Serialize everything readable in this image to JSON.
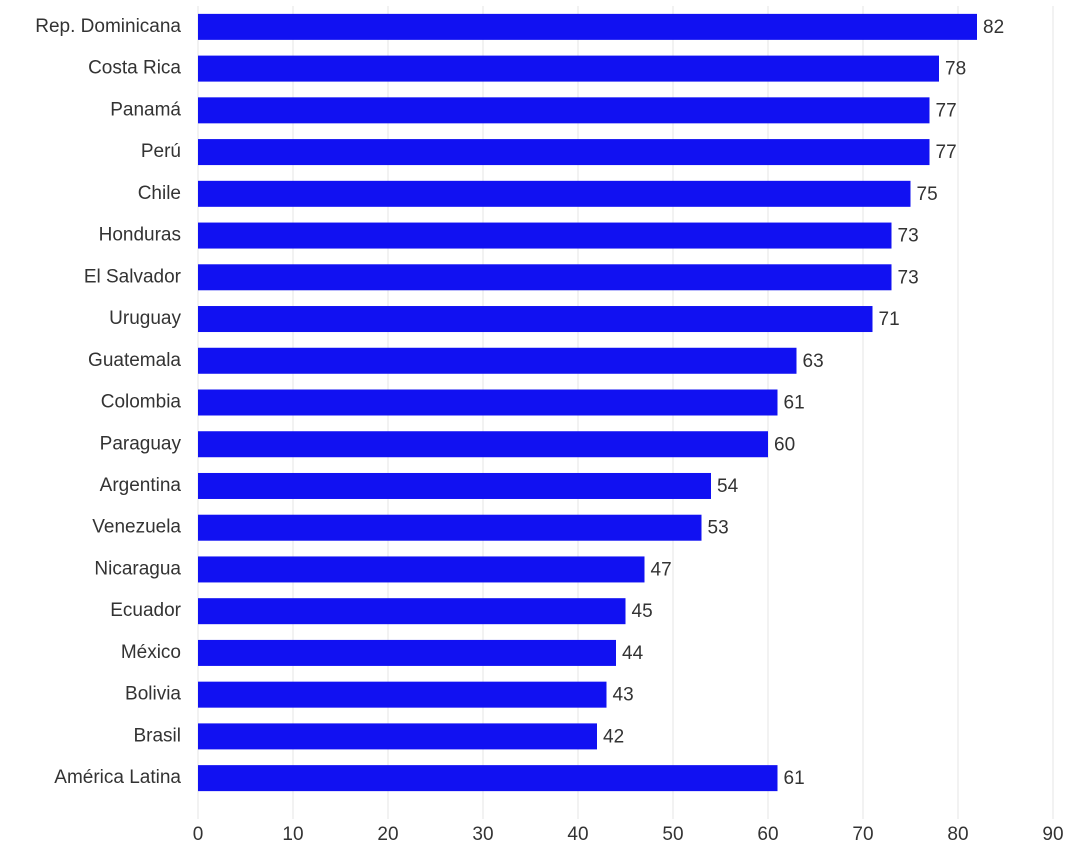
{
  "chart_data": {
    "type": "bar",
    "categories": [
      "Rep. Dominicana",
      "Costa Rica",
      "Panamá",
      "Perú",
      "Chile",
      "Honduras",
      "El Salvador",
      "Uruguay",
      "Guatemala",
      "Colombia",
      "Paraguay",
      "Argentina",
      "Venezuela",
      "Nicaragua",
      "Ecuador",
      "México",
      "Bolivia",
      "Brasil",
      "América Latina"
    ],
    "values": [
      82,
      78,
      77,
      77,
      75,
      73,
      73,
      71,
      63,
      61,
      60,
      54,
      53,
      47,
      45,
      44,
      43,
      42,
      61
    ],
    "color": "#1111f2",
    "xlim": [
      0,
      90
    ],
    "xticks": [
      0,
      10,
      20,
      30,
      40,
      50,
      60,
      70,
      80,
      90
    ],
    "grid": true
  }
}
